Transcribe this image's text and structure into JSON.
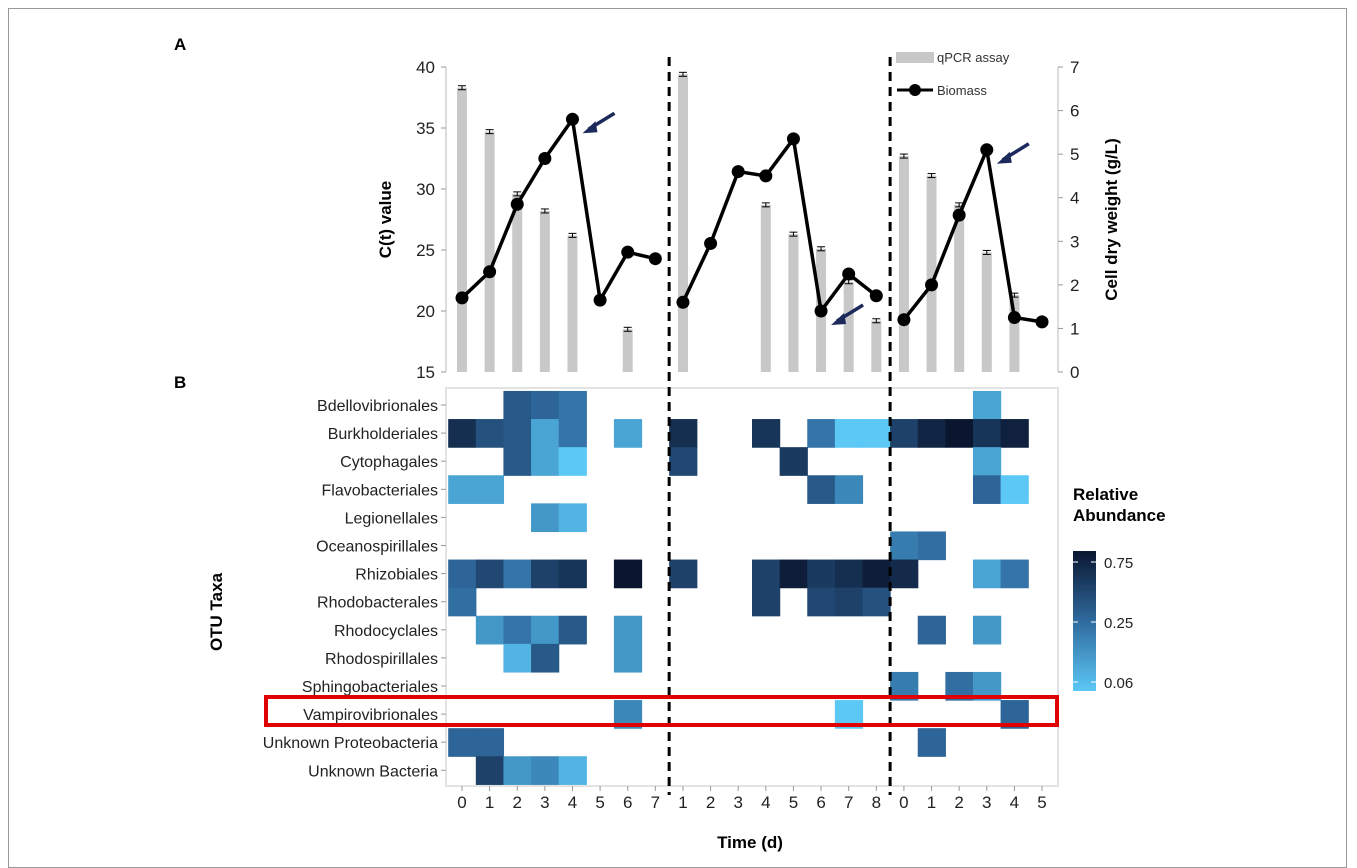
{
  "panels": {
    "a": "A",
    "b": "B"
  },
  "chart_data": [
    {
      "type": "bar+line",
      "left_axis": {
        "label": "C(t) value",
        "ylim": [
          15,
          40
        ],
        "ticks": [
          15,
          20,
          25,
          30,
          35,
          40
        ]
      },
      "right_axis": {
        "label": "Cell dry weight (g/L)",
        "ylim": [
          0,
          7
        ],
        "ticks": [
          0,
          1,
          2,
          3,
          4,
          5,
          6,
          7
        ]
      },
      "legend": {
        "bars": "qPCR assay",
        "line": "Biomass",
        "placement": "top-right"
      },
      "x_ticks": [
        "0",
        "1",
        "2",
        "3",
        "4",
        "5",
        "6",
        "7",
        "1",
        "2",
        "3",
        "4",
        "5",
        "6",
        "7",
        "8",
        "0",
        "1",
        "2",
        "3",
        "4",
        "5"
      ],
      "experiments": [
        {
          "x": [
            0,
            1,
            2,
            3,
            4,
            5,
            6,
            7
          ],
          "qpcr": [
            38.3,
            34.7,
            29.6,
            28.2,
            26.2,
            null,
            18.5,
            null
          ],
          "biomass": [
            1.7,
            2.3,
            3.85,
            4.9,
            5.8,
            1.65,
            2.75,
            2.6
          ],
          "peak_arrow_at": 4
        },
        {
          "x": [
            1,
            2,
            3,
            4,
            5,
            6,
            7,
            8
          ],
          "qpcr": [
            39.4,
            null,
            null,
            28.7,
            26.3,
            25.1,
            22.4,
            19.2
          ],
          "biomass": [
            1.6,
            2.95,
            4.6,
            4.5,
            5.35,
            1.4,
            2.25,
            1.75
          ],
          "peak_arrow_at": 5
        },
        {
          "x": [
            0,
            1,
            2,
            3,
            4,
            5
          ],
          "qpcr": [
            32.7,
            31.1,
            28.7,
            24.8,
            21.3,
            null
          ],
          "biomass": [
            1.2,
            2.0,
            3.6,
            5.1,
            1.25,
            1.15
          ],
          "peak_arrow_at": 3
        }
      ]
    },
    {
      "type": "heatmap",
      "xlabel": "Time (d)",
      "ylabel": "OTU Taxa",
      "x": [
        "0",
        "1",
        "2",
        "3",
        "4",
        "5",
        "6",
        "7",
        "1",
        "2",
        "3",
        "4",
        "5",
        "6",
        "7",
        "8",
        "0",
        "1",
        "2",
        "3",
        "4",
        "5"
      ],
      "taxa": [
        "Bdellovibrionales",
        "Burkholderiales",
        "Cytophagales",
        "Flavobacteriales",
        "Legionellales",
        "Oceanospirillales",
        "Rhizobiales",
        "Rhodobacterales",
        "Rhodocyclales",
        "Rhodospirillales",
        "Sphingobacteriales",
        "Vampirovibrionales",
        "Unknown Proteobacteria",
        "Unknown Bacteria"
      ],
      "values": [
        [
          null,
          null,
          0.3,
          0.25,
          0.2,
          null,
          null,
          null,
          null,
          null,
          null,
          null,
          null,
          null,
          null,
          null,
          null,
          null,
          null,
          0.1,
          null,
          null
        ],
        [
          0.6,
          0.35,
          0.3,
          0.1,
          0.2,
          null,
          0.1,
          null,
          0.6,
          null,
          null,
          0.55,
          null,
          0.2,
          0.06,
          0.06,
          0.45,
          0.7,
          0.9,
          0.55,
          0.75,
          null
        ],
        [
          null,
          null,
          0.3,
          0.1,
          0.06,
          null,
          null,
          null,
          0.4,
          null,
          null,
          null,
          0.5,
          null,
          null,
          null,
          null,
          null,
          null,
          0.1,
          null,
          null
        ],
        [
          0.1,
          0.1,
          null,
          null,
          null,
          null,
          null,
          null,
          null,
          null,
          null,
          null,
          null,
          0.3,
          0.15,
          null,
          null,
          null,
          null,
          0.25,
          0.06,
          null
        ],
        [
          null,
          null,
          null,
          0.12,
          0.08,
          null,
          null,
          null,
          null,
          null,
          null,
          null,
          null,
          null,
          null,
          null,
          null,
          null,
          null,
          null,
          null,
          null
        ],
        [
          null,
          null,
          null,
          null,
          null,
          null,
          null,
          null,
          null,
          null,
          null,
          null,
          null,
          null,
          null,
          null,
          0.18,
          0.22,
          null,
          null,
          null,
          null
        ],
        [
          0.25,
          0.4,
          0.2,
          0.45,
          0.55,
          null,
          0.9,
          null,
          0.45,
          null,
          null,
          0.45,
          0.8,
          0.5,
          0.6,
          0.8,
          0.65,
          null,
          null,
          0.1,
          0.2,
          null
        ],
        [
          0.22,
          null,
          null,
          null,
          null,
          null,
          null,
          null,
          null,
          null,
          null,
          0.45,
          null,
          0.4,
          0.45,
          0.35,
          null,
          null,
          null,
          null,
          null,
          null
        ],
        [
          null,
          0.12,
          0.2,
          0.12,
          0.3,
          null,
          0.12,
          null,
          null,
          null,
          null,
          null,
          null,
          null,
          null,
          null,
          null,
          0.25,
          null,
          0.12,
          null,
          null
        ],
        [
          null,
          null,
          0.08,
          0.3,
          null,
          null,
          0.12,
          null,
          null,
          null,
          null,
          null,
          null,
          null,
          null,
          null,
          null,
          null,
          null,
          null,
          null,
          null
        ],
        [
          null,
          null,
          null,
          null,
          null,
          null,
          null,
          null,
          null,
          null,
          null,
          null,
          null,
          null,
          null,
          null,
          0.18,
          null,
          0.22,
          0.12,
          null,
          null
        ],
        [
          null,
          null,
          null,
          null,
          null,
          null,
          0.15,
          null,
          null,
          null,
          null,
          null,
          null,
          null,
          0.06,
          null,
          null,
          null,
          null,
          null,
          0.25,
          null
        ],
        [
          0.25,
          0.25,
          null,
          null,
          null,
          null,
          null,
          null,
          null,
          null,
          null,
          null,
          null,
          null,
          null,
          null,
          null,
          0.25,
          null,
          null,
          null,
          null
        ],
        [
          null,
          0.45,
          0.12,
          0.15,
          0.08,
          null,
          null,
          null,
          null,
          null,
          null,
          null,
          null,
          null,
          null,
          null,
          null,
          null,
          null,
          null,
          null,
          null
        ]
      ],
      "highlighted_row": "Vampirovibrionales",
      "colorbar": {
        "title": [
          "Relative",
          "Abundance"
        ],
        "ticks": [
          "0.75",
          "0.25",
          "0.06"
        ],
        "low_color": "#5bc8f5",
        "high_color": "#0a1630"
      }
    }
  ]
}
